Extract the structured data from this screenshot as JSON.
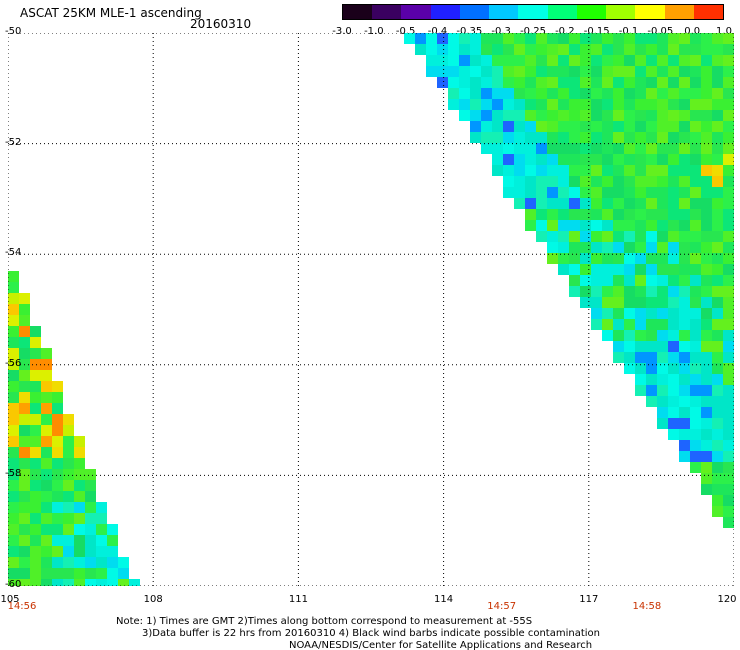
{
  "header": {
    "title": "ASCAT 25KM MLE-1 ascending",
    "date": "20160310"
  },
  "colorbar": {
    "labels": [
      "-3.0",
      "-1.0",
      "-0.5",
      "-0.4",
      "-0.35",
      "-0.3",
      "-0.25",
      "-0.2",
      "-0.15",
      "-0.1",
      "-0.05",
      "0.0",
      "1.0"
    ],
    "colors": [
      "#1a001a",
      "#3a0060",
      "#5a00a8",
      "#2020ff",
      "#0070ff",
      "#00c8ff",
      "#00ffe6",
      "#00ff78",
      "#20ff00",
      "#a0ff00",
      "#ffff00",
      "#ffa000",
      "#ff3000"
    ]
  },
  "map": {
    "lat_ticks": [
      "-50",
      "-52",
      "-54",
      "-56",
      "-58",
      "-60"
    ],
    "lon_ticks": [
      "105",
      "108",
      "111",
      "114",
      "117",
      "120"
    ],
    "lat_range": [
      -60,
      -50
    ],
    "lon_range": [
      105,
      120
    ],
    "swath_times": [
      {
        "lon": 105,
        "label": "14:56"
      },
      {
        "lon": 115.2,
        "label": "14:57"
      },
      {
        "lon": 118.2,
        "label": "14:58"
      }
    ]
  },
  "notes": {
    "line1": "Note: 1) Times are GMT 2)Times along bottom correspond to measurement at -55S",
    "line2": "3)Data buffer is 22 hrs from 20160310 4) Black wind barbs indicate possible contamination",
    "line3": "NOAA/NESDIS/Center for Satellite Applications and Research"
  }
}
